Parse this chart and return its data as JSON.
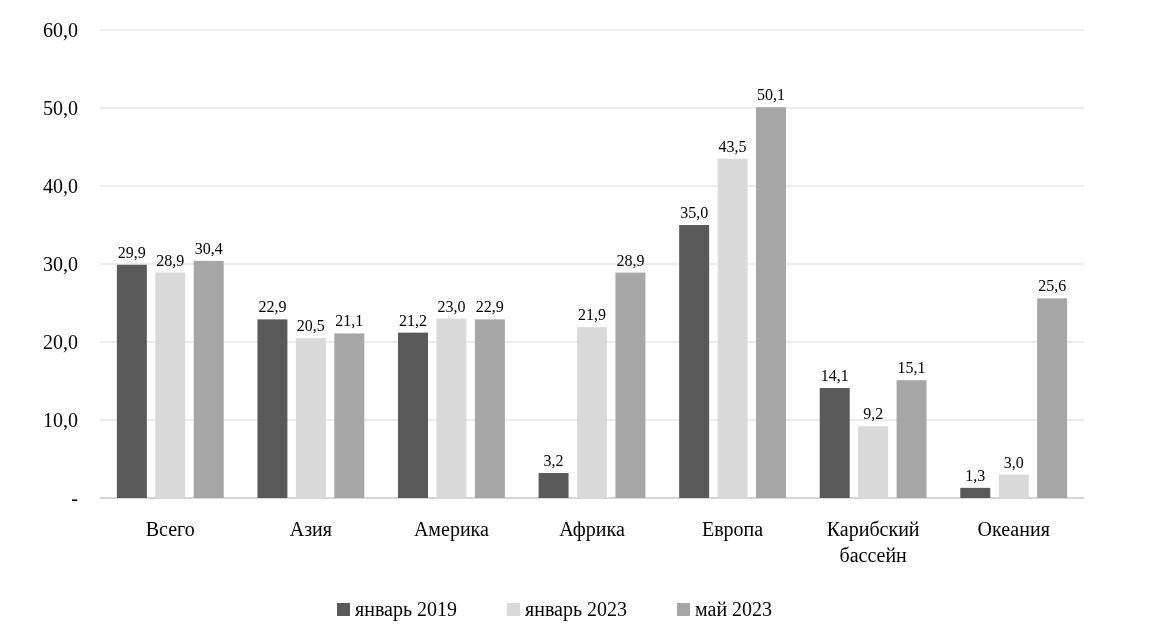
{
  "chart_data": {
    "type": "bar",
    "categories": [
      "Всего",
      "Азия",
      "Америка",
      "Африка",
      "Европа",
      "Карибский бассейн",
      "Океания"
    ],
    "series": [
      {
        "name": "январь 2019",
        "color": "#595959",
        "values": [
          29.9,
          22.9,
          21.2,
          3.2,
          35.0,
          14.1,
          1.3
        ],
        "value_labels": [
          "29,9",
          "22,9",
          "21,2",
          "3,2",
          "35,0",
          "14,1",
          "1,3"
        ]
      },
      {
        "name": "январь 2023",
        "color": "#d9d9d9",
        "values": [
          28.9,
          20.5,
          23.0,
          21.9,
          43.5,
          9.2,
          3.0
        ],
        "value_labels": [
          "28,9",
          "20,5",
          "23,0",
          "21,9",
          "43,5",
          "9,2",
          "3,0"
        ]
      },
      {
        "name": "май 2023",
        "color": "#a6a6a6",
        "values": [
          30.4,
          21.1,
          22.9,
          28.9,
          50.1,
          15.1,
          25.6
        ],
        "value_labels": [
          "30,4",
          "21,1",
          "22,9",
          "28,9",
          "50,1",
          "15,1",
          "25,6"
        ]
      }
    ],
    "ylim": [
      0,
      60
    ],
    "yticks": [
      {
        "value": 0,
        "label": "-"
      },
      {
        "value": 10,
        "label": "10,0"
      },
      {
        "value": 20,
        "label": "20,0"
      },
      {
        "value": 30,
        "label": "30,0"
      },
      {
        "value": 40,
        "label": "40,0"
      },
      {
        "value": 50,
        "label": "50,0"
      },
      {
        "value": 60,
        "label": "60,0"
      }
    ],
    "grid": "y",
    "legend": "bottom"
  }
}
